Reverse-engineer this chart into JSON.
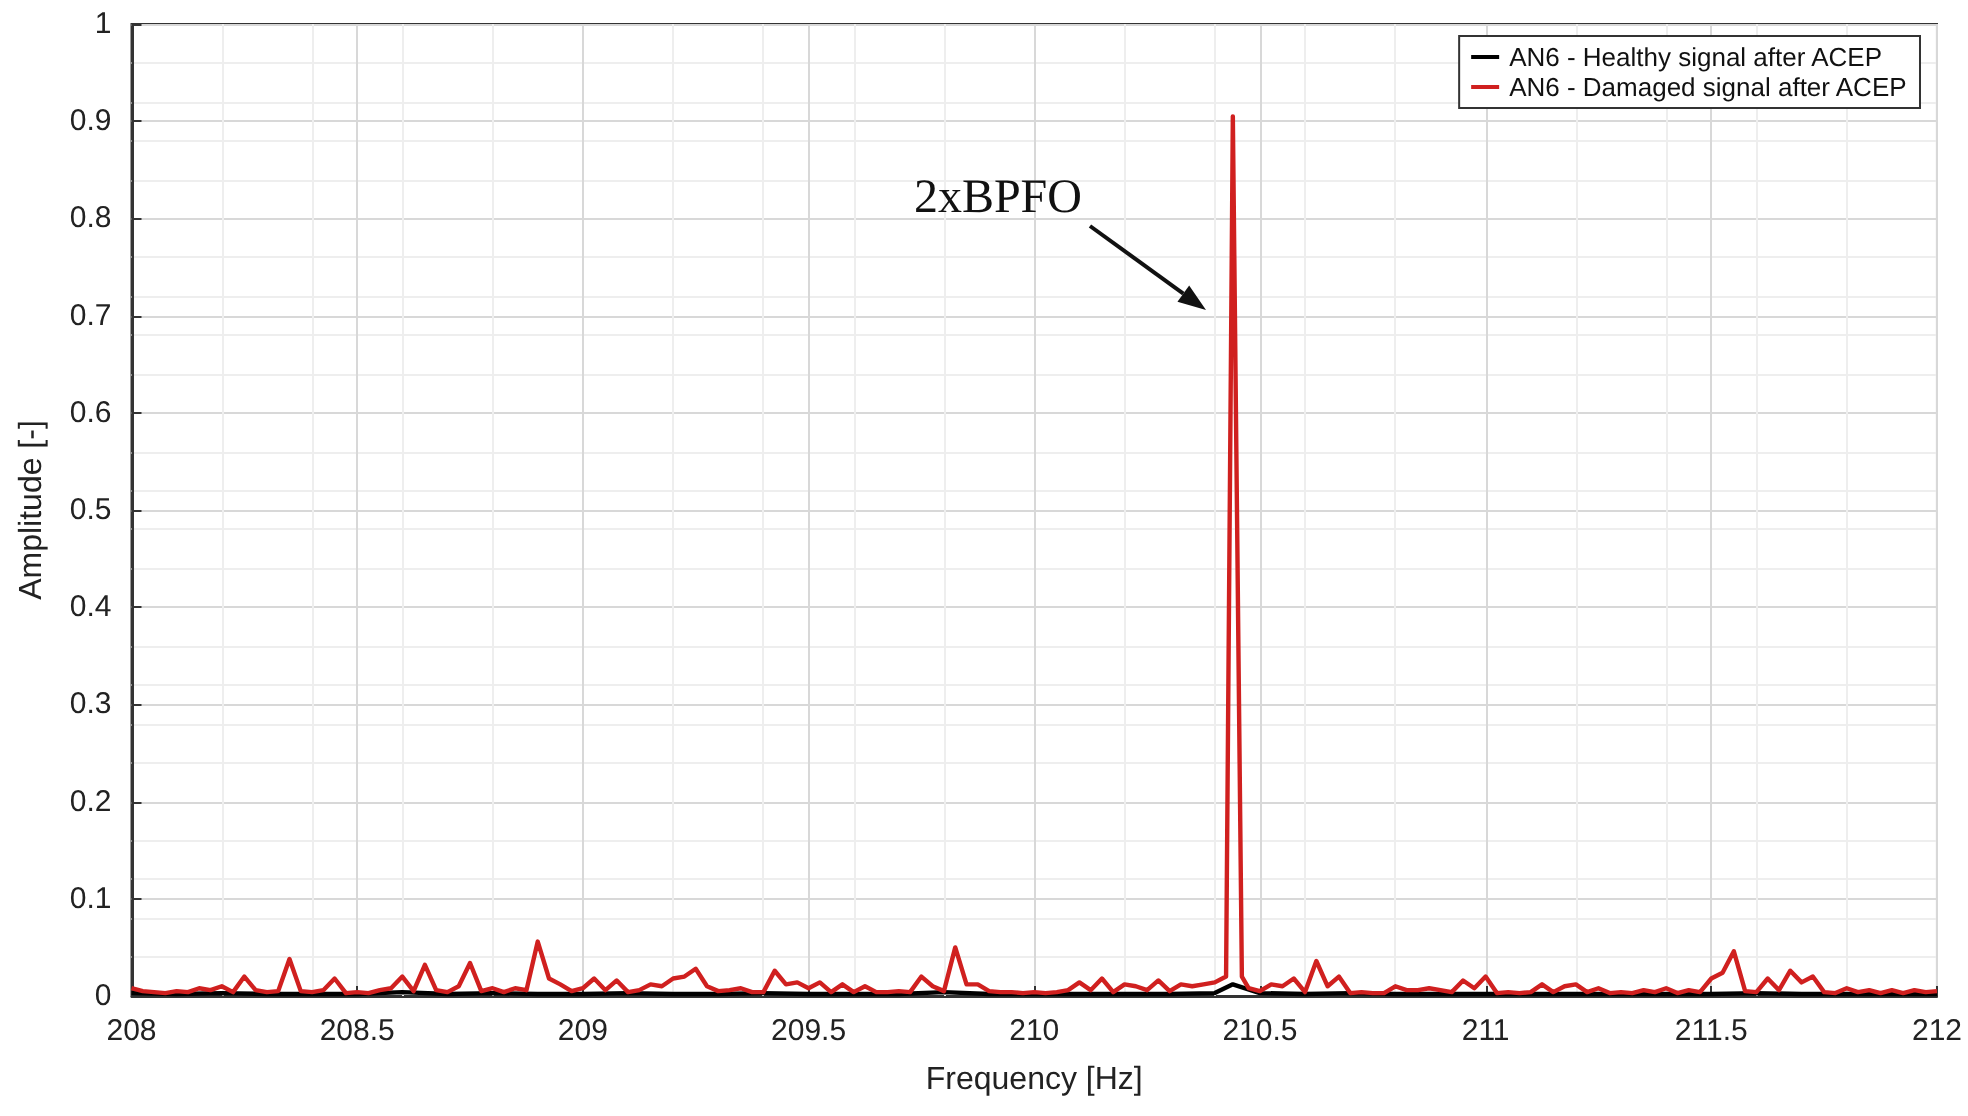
{
  "chart_data": {
    "type": "line",
    "xlabel": "Frequency [Hz]",
    "ylabel": "Amplitude [-]",
    "xlim": [
      208,
      212
    ],
    "xticks": [
      208,
      208.5,
      209,
      209.5,
      210,
      210.5,
      211,
      211.5,
      212
    ],
    "ylim": [
      0,
      1
    ],
    "yticks": [
      0,
      0.1,
      0.2,
      0.3,
      0.4,
      0.5,
      0.6,
      0.7,
      0.8,
      0.9,
      1
    ],
    "grid": true,
    "legend": "top right",
    "marker": "none",
    "line_style": "solid",
    "annotations": [
      "2xBPFO"
    ],
    "series": [
      {
        "name": "AN6 - Healthy signal after ACEP",
        "color": "#000000",
        "x": [
          208,
          208.1,
          208.2,
          208.3,
          208.4,
          208.5,
          208.6,
          208.7,
          208.8,
          208.9,
          209,
          209.1,
          209.2,
          209.3,
          209.4,
          209.5,
          209.6,
          209.7,
          209.8,
          209.9,
          210,
          210.1,
          210.2,
          210.3,
          210.4,
          210.44,
          210.5,
          210.6,
          210.7,
          210.8,
          210.9,
          211,
          211.1,
          211.2,
          211.3,
          211.4,
          211.5,
          211.6,
          211.7,
          211.8,
          211.9,
          212
        ],
        "values": [
          0.003,
          0.002,
          0.003,
          0.002,
          0.002,
          0.002,
          0.004,
          0.002,
          0.003,
          0.002,
          0.002,
          0.003,
          0.002,
          0.002,
          0.003,
          0.002,
          0.002,
          0.002,
          0.004,
          0.002,
          0.002,
          0.002,
          0.002,
          0.002,
          0.003,
          0.012,
          0.003,
          0.002,
          0.003,
          0.002,
          0.002,
          0.002,
          0.002,
          0.002,
          0.002,
          0.002,
          0.002,
          0.003,
          0.002,
          0.002,
          0.002,
          0.002
        ]
      },
      {
        "name": "AN6 - Damaged signal after ACEP",
        "color": "#d0201f",
        "x": [
          208,
          208.025,
          208.05,
          208.075,
          208.1,
          208.125,
          208.15,
          208.175,
          208.2,
          208.225,
          208.25,
          208.275,
          208.3,
          208.325,
          208.35,
          208.375,
          208.4,
          208.425,
          208.45,
          208.475,
          208.5,
          208.525,
          208.55,
          208.575,
          208.6,
          208.625,
          208.65,
          208.675,
          208.7,
          208.725,
          208.75,
          208.775,
          208.8,
          208.825,
          208.85,
          208.875,
          208.9,
          208.925,
          208.95,
          208.975,
          209,
          209.025,
          209.05,
          209.075,
          209.1,
          209.125,
          209.15,
          209.175,
          209.2,
          209.225,
          209.25,
          209.275,
          209.3,
          209.325,
          209.35,
          209.375,
          209.4,
          209.425,
          209.45,
          209.475,
          209.5,
          209.525,
          209.55,
          209.575,
          209.6,
          209.625,
          209.65,
          209.675,
          209.7,
          209.725,
          209.75,
          209.775,
          209.8,
          209.825,
          209.85,
          209.875,
          209.9,
          209.925,
          209.95,
          209.975,
          210,
          210.025,
          210.05,
          210.075,
          210.1,
          210.125,
          210.15,
          210.175,
          210.2,
          210.225,
          210.25,
          210.275,
          210.3,
          210.325,
          210.35,
          210.375,
          210.4,
          210.425,
          210.44,
          210.46,
          210.475,
          210.5,
          210.525,
          210.55,
          210.575,
          210.6,
          210.625,
          210.65,
          210.675,
          210.7,
          210.725,
          210.75,
          210.775,
          210.8,
          210.825,
          210.85,
          210.875,
          210.9,
          210.925,
          210.95,
          210.975,
          211,
          211.025,
          211.05,
          211.075,
          211.1,
          211.125,
          211.15,
          211.175,
          211.2,
          211.225,
          211.25,
          211.275,
          211.3,
          211.325,
          211.35,
          211.375,
          211.4,
          211.425,
          211.45,
          211.475,
          211.5,
          211.525,
          211.55,
          211.575,
          211.6,
          211.625,
          211.65,
          211.675,
          211.7,
          211.725,
          211.75,
          211.775,
          211.8,
          211.825,
          211.85,
          211.875,
          211.9,
          211.925,
          211.95,
          211.975,
          212
        ],
        "values": [
          0.008,
          0.005,
          0.004,
          0.003,
          0.005,
          0.004,
          0.008,
          0.006,
          0.01,
          0.004,
          0.02,
          0.006,
          0.004,
          0.005,
          0.038,
          0.005,
          0.004,
          0.006,
          0.018,
          0.003,
          0.004,
          0.003,
          0.006,
          0.008,
          0.02,
          0.005,
          0.032,
          0.006,
          0.004,
          0.01,
          0.034,
          0.005,
          0.008,
          0.004,
          0.008,
          0.006,
          0.056,
          0.018,
          0.012,
          0.005,
          0.008,
          0.018,
          0.006,
          0.016,
          0.004,
          0.006,
          0.012,
          0.01,
          0.018,
          0.02,
          0.028,
          0.01,
          0.005,
          0.006,
          0.008,
          0.004,
          0.004,
          0.026,
          0.012,
          0.014,
          0.008,
          0.014,
          0.004,
          0.012,
          0.004,
          0.01,
          0.004,
          0.004,
          0.005,
          0.004,
          0.02,
          0.01,
          0.005,
          0.05,
          0.012,
          0.012,
          0.005,
          0.004,
          0.004,
          0.003,
          0.004,
          0.003,
          0.004,
          0.006,
          0.014,
          0.006,
          0.018,
          0.004,
          0.012,
          0.01,
          0.006,
          0.016,
          0.005,
          0.012,
          0.01,
          0.012,
          0.014,
          0.02,
          0.905,
          0.02,
          0.008,
          0.005,
          0.012,
          0.01,
          0.018,
          0.004,
          0.036,
          0.01,
          0.02,
          0.003,
          0.004,
          0.003,
          0.003,
          0.01,
          0.006,
          0.006,
          0.008,
          0.006,
          0.004,
          0.016,
          0.008,
          0.02,
          0.003,
          0.004,
          0.003,
          0.004,
          0.012,
          0.004,
          0.01,
          0.012,
          0.004,
          0.008,
          0.003,
          0.004,
          0.003,
          0.006,
          0.004,
          0.008,
          0.003,
          0.006,
          0.004,
          0.018,
          0.024,
          0.046,
          0.005,
          0.004,
          0.018,
          0.006,
          0.026,
          0.014,
          0.02,
          0.004,
          0.003,
          0.008,
          0.004,
          0.006,
          0.003,
          0.006,
          0.003,
          0.006,
          0.004,
          0.005
        ]
      }
    ]
  }
}
